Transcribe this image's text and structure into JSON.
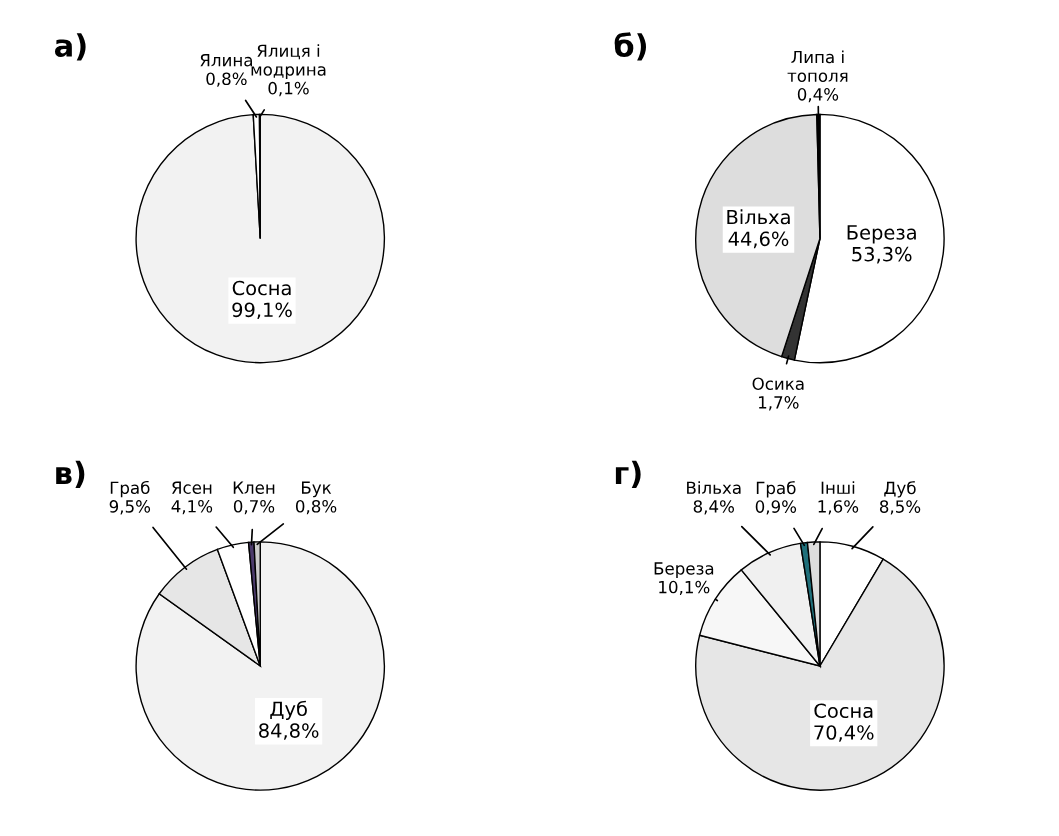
{
  "chart_data": [
    {
      "type": "pie",
      "title": "а)",
      "categories": [
        "Сосна",
        "Ялина",
        "Ялиця і модрина"
      ],
      "values": [
        99.1,
        0.8,
        0.1
      ],
      "colors": [
        "#f2f2f2",
        "#ffffff",
        "#d9d9d9"
      ],
      "value_labels": [
        "99,1%",
        "0,8%",
        "0,1%"
      ]
    },
    {
      "type": "pie",
      "title": "б)",
      "categories": [
        "Береза",
        "Осика",
        "Вільха",
        "Липа і тополя"
      ],
      "values": [
        53.3,
        1.7,
        44.6,
        0.4
      ],
      "colors": [
        "#ffffff",
        "#333333",
        "#dddddd",
        "#000000"
      ],
      "value_labels": [
        "53,3%",
        "1,7%",
        "44,6%",
        "0,4%"
      ]
    },
    {
      "type": "pie",
      "title": "в)",
      "categories": [
        "Дуб",
        "Граб",
        "Ясен",
        "Клен",
        "Бук"
      ],
      "values": [
        84.8,
        9.5,
        4.1,
        0.7,
        0.8
      ],
      "colors": [
        "#f2f2f2",
        "#e6e6e6",
        "#ffffff",
        "#4b3a6b",
        "#cccccc"
      ],
      "value_labels": [
        "84,8%",
        "9,5%",
        "4,1%",
        "0,7%",
        "0,8%"
      ]
    },
    {
      "type": "pie",
      "title": "г)",
      "categories": [
        "Дуб",
        "Сосна",
        "Береза",
        "Вільха",
        "Граб",
        "Інші"
      ],
      "values": [
        8.5,
        70.4,
        10.1,
        8.4,
        0.9,
        1.6
      ],
      "colors": [
        "#ffffff",
        "#e6e6e6",
        "#f7f7f7",
        "#f0f0f0",
        "#1f6f7a",
        "#dddddd"
      ],
      "value_labels": [
        "8,5%",
        "70,4%",
        "10,1%",
        "8,4%",
        "0,9%",
        "1,6%"
      ]
    }
  ]
}
